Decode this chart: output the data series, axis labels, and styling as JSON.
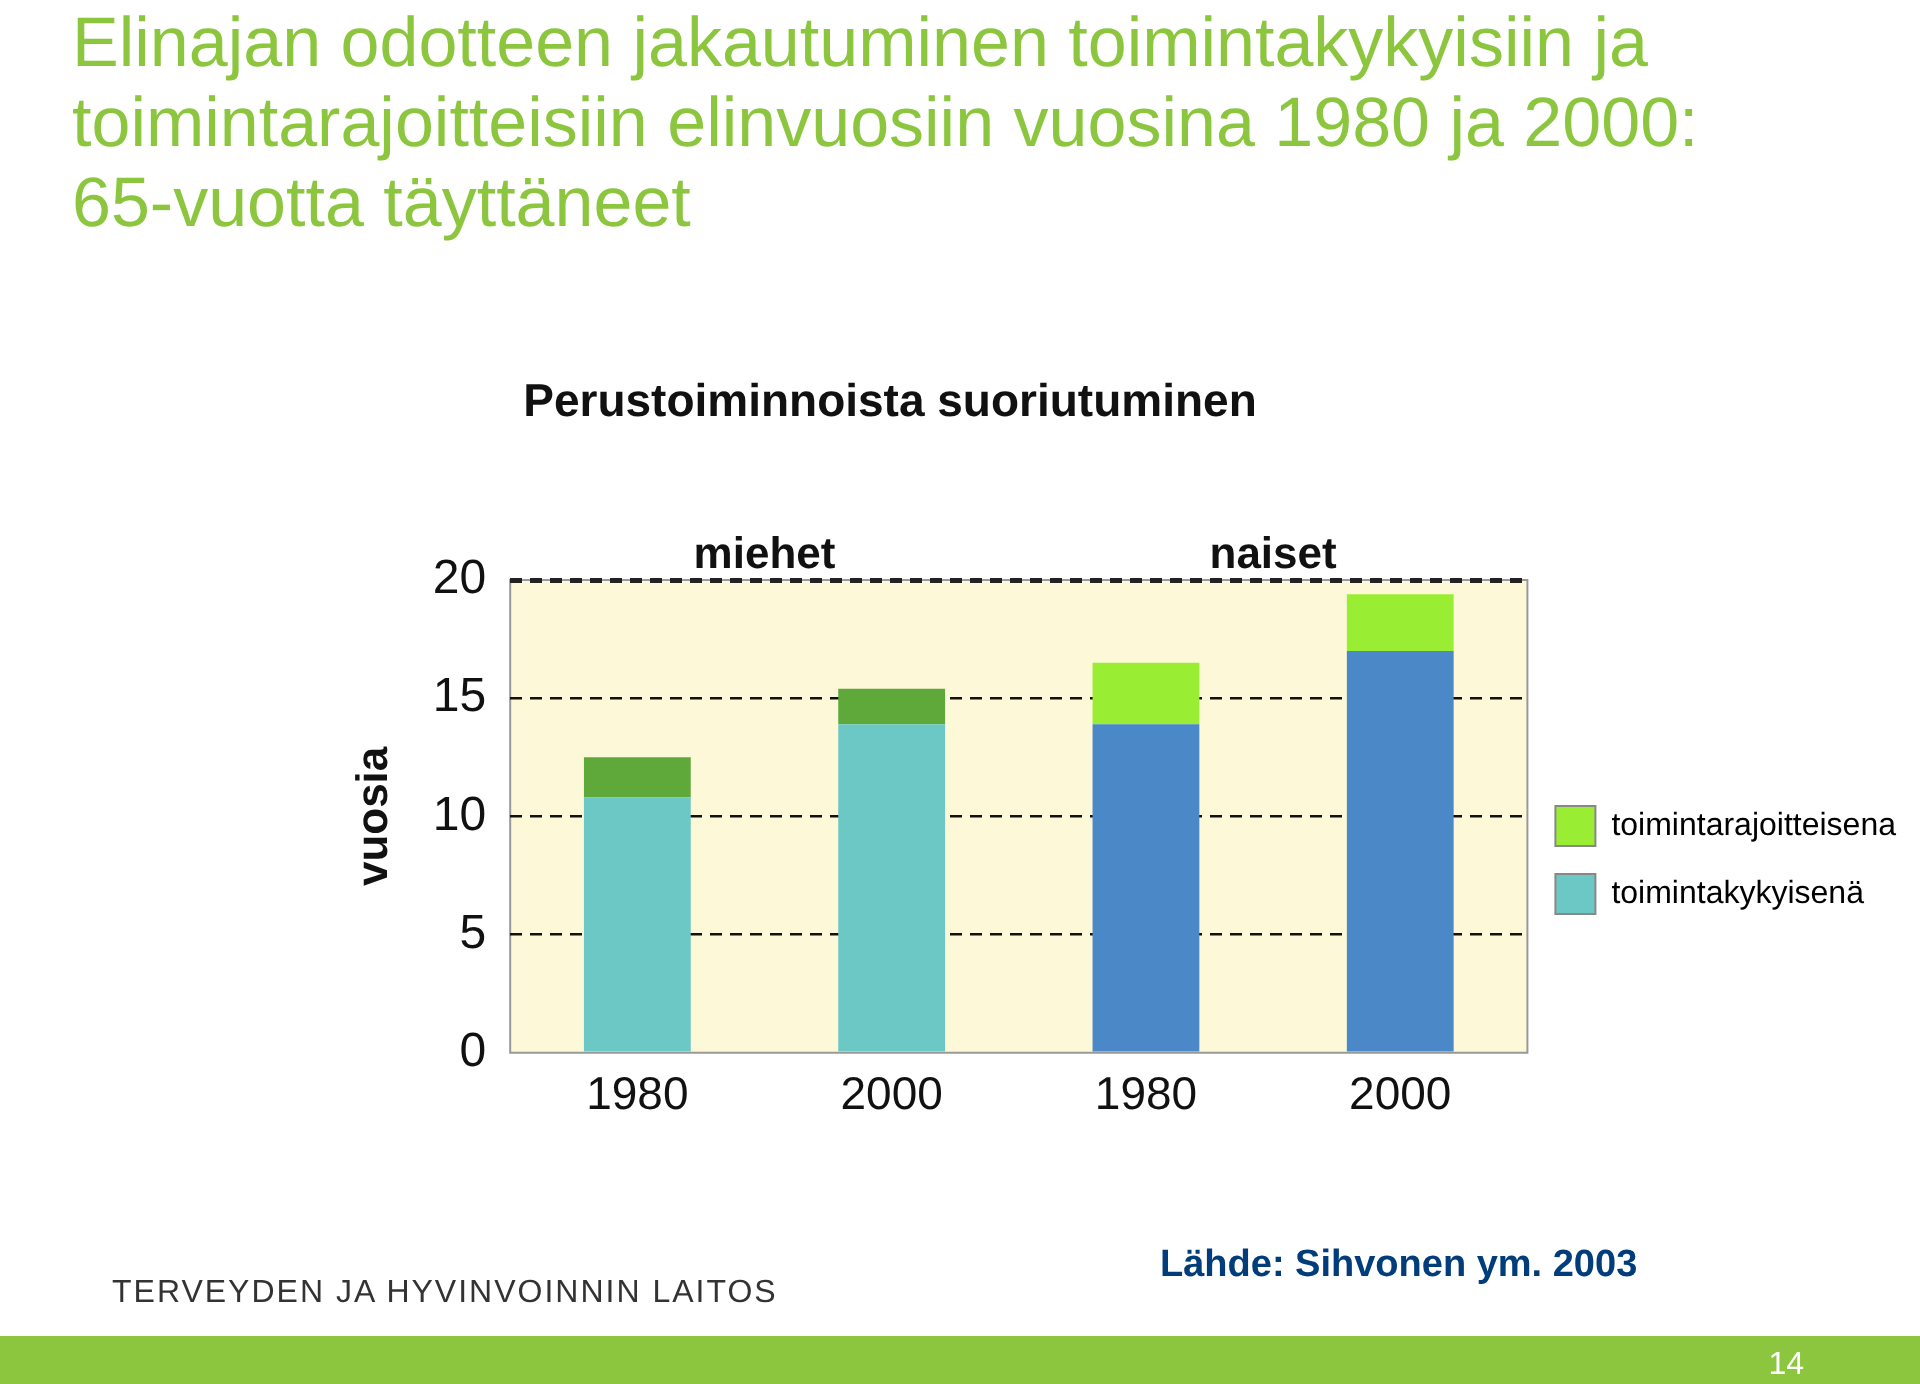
{
  "chart_data": {
    "type": "bar",
    "title": "Elinajan odotteen jakautuminen toimintakykyisiin ja toimintarajoitteisiin elinvuosiin vuosina 1980 ja 2000: 65-vuotta täyttäneet",
    "subtitle": "Perustoiminnoista suoriutuminen",
    "ylabel": "vuosia",
    "categories": [
      "1980",
      "2000",
      "1980",
      "2000"
    ],
    "series": [
      {
        "name": "toimintakykyisenä",
        "color": "#6cc8c4",
        "colors": [
          "#6cc8c4",
          "#6cc8c4",
          "#4a88c8",
          "#4a88c8"
        ],
        "values": [
          10.8,
          13.9,
          13.9,
          17.0
        ]
      },
      {
        "name": "toimintarajoitteisena",
        "color": "#99ee33",
        "colors": [
          "#5fa83a",
          "#5fa83a",
          "#99ee33",
          "#99ee33"
        ],
        "values": [
          1.7,
          1.5,
          2.6,
          2.4
        ]
      }
    ],
    "stacked": true,
    "ylim": [
      0,
      20
    ],
    "yticks": [
      0,
      5,
      10,
      15,
      20
    ],
    "grid": "y",
    "line_style": "dashed",
    "legend": "right",
    "annotations": [
      "miehet",
      "naiset",
      "TERVEYDEN JA HYVINVOINNIN LAITOS",
      "Lähde: Sihvonen ym. 2003",
      "14"
    ]
  }
}
